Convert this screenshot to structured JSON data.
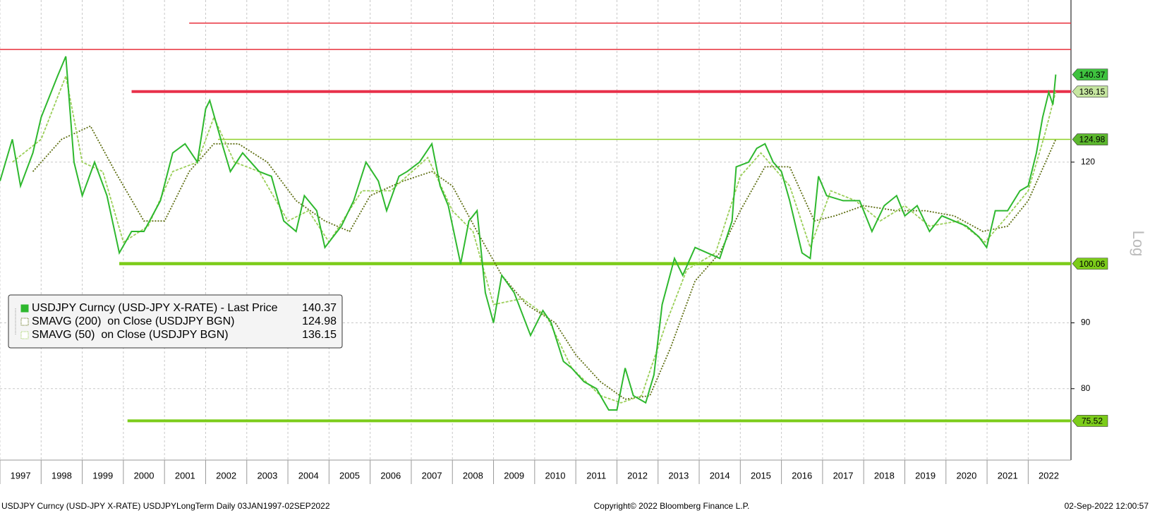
{
  "chart_data": {
    "type": "line",
    "log_scale": true,
    "grid": true,
    "axis_label": "Log",
    "footer_left": "USDJPY Curncy (USD-JPY X-RATE) USDJPYLongTerm  Daily 03JAN1997-02SEP2022",
    "footer_center": "Copyright© 2022 Bloomberg Finance L.P.",
    "footer_right": "02-Sep-2022 12:00:57",
    "xlim": [
      1997,
      2023.04
    ],
    "x_labels": [
      "1997",
      "1998",
      "1999",
      "2000",
      "2001",
      "2002",
      "2003",
      "2004",
      "2005",
      "2006",
      "2007",
      "2008",
      "2009",
      "2010",
      "2011",
      "2012",
      "2013",
      "2014",
      "2015",
      "2016",
      "2017",
      "2018",
      "2019",
      "2020",
      "2021",
      "2022"
    ],
    "ylim": [
      70.4,
      160.4
    ],
    "yticks": [
      80,
      90,
      120
    ],
    "series": [
      {
        "name": "USDJPY Curncy (USD-JPY X-RATE) - Last Price",
        "last": 140.37,
        "color": "#2eb82e",
        "style": "solid",
        "x": [
          1997.0,
          1997.3,
          1997.5,
          1997.8,
          1998.0,
          1998.4,
          1998.6,
          1998.8,
          1999.0,
          1999.3,
          1999.6,
          1999.9,
          2000.2,
          2000.5,
          2000.9,
          2001.2,
          2001.5,
          2001.8,
          2002.0,
          2002.1,
          2002.4,
          2002.6,
          2002.9,
          2003.3,
          2003.6,
          2003.9,
          2004.2,
          2004.4,
          2004.7,
          2004.9,
          2005.3,
          2005.6,
          2005.9,
          2006.2,
          2006.4,
          2006.7,
          2006.9,
          2007.2,
          2007.5,
          2007.7,
          2007.9,
          2008.2,
          2008.4,
          2008.6,
          2008.8,
          2009.0,
          2009.2,
          2009.5,
          2009.9,
          2010.2,
          2010.4,
          2010.7,
          2010.9,
          2011.2,
          2011.5,
          2011.8,
          2012.0,
          2012.2,
          2012.4,
          2012.7,
          2012.9,
          2013.1,
          2013.4,
          2013.6,
          2013.9,
          2014.2,
          2014.5,
          2014.8,
          2014.9,
          2015.2,
          2015.4,
          2015.6,
          2015.8,
          2016.0,
          2016.2,
          2016.5,
          2016.7,
          2016.9,
          2017.1,
          2017.5,
          2017.9,
          2018.2,
          2018.5,
          2018.8,
          2019.0,
          2019.3,
          2019.6,
          2019.9,
          2020.2,
          2020.5,
          2020.8,
          2020.99,
          2021.2,
          2021.5,
          2021.8,
          2022.0,
          2022.2,
          2022.35,
          2022.5,
          2022.6,
          2022.67
        ],
        "values": [
          116,
          125,
          115,
          122,
          130,
          140,
          145,
          120,
          113,
          120,
          113,
          102,
          106,
          106,
          112,
          122,
          124,
          120,
          132,
          134,
          124,
          118,
          122,
          118,
          117,
          108,
          106,
          113,
          110,
          103,
          107,
          112,
          120,
          116,
          110,
          117,
          118,
          120,
          124,
          115,
          111,
          100,
          108,
          110,
          95,
          90,
          98,
          95,
          88,
          92,
          90,
          84,
          83,
          81,
          80,
          77,
          77,
          83,
          79,
          78,
          82,
          93,
          101,
          98,
          103,
          102,
          101,
          108,
          119,
          120,
          123,
          124,
          120,
          118,
          112,
          102,
          101,
          117,
          113,
          112,
          112,
          106,
          111,
          113,
          109,
          111,
          106,
          109,
          108,
          107,
          105,
          103,
          110,
          110,
          114,
          115,
          122,
          130,
          136,
          133,
          140.37
        ]
      },
      {
        "name": "SMAVG (200)  on Close (USDJPY BGN)",
        "last": 124.98,
        "color": "#5e6e12",
        "style": "dotted",
        "x": [
          1997.8,
          1998.5,
          1999.2,
          1999.8,
          2000.5,
          2001.0,
          2001.6,
          2002.2,
          2002.8,
          2003.5,
          2004.2,
          2004.9,
          2005.5,
          2006.0,
          2006.8,
          2007.5,
          2008.0,
          2008.6,
          2009.2,
          2009.8,
          2010.5,
          2011.0,
          2011.6,
          2012.2,
          2012.8,
          2013.3,
          2013.9,
          2014.5,
          2015.0,
          2015.6,
          2016.2,
          2016.8,
          2017.3,
          2018.0,
          2018.8,
          2019.5,
          2020.2,
          2020.9,
          2021.5,
          2022.0,
          2022.67
        ],
        "values": [
          118,
          125,
          128,
          118,
          108,
          108,
          118,
          124,
          124,
          120,
          112,
          108,
          106,
          113,
          116,
          118,
          115,
          106,
          98,
          93,
          90,
          85,
          81,
          78.5,
          79,
          86,
          97,
          102,
          110,
          119,
          119,
          108,
          109,
          111,
          110,
          110,
          109,
          106,
          107,
          112,
          124.98
        ]
      },
      {
        "name": "SMAVG (50)  on Close (USDJPY BGN)",
        "last": 136.15,
        "color": "#9ccf5a",
        "style": "dashed",
        "x": [
          1997.3,
          1998.0,
          1998.6,
          1999.0,
          1999.5,
          2000.0,
          2000.6,
          2001.2,
          2001.8,
          2002.2,
          2002.7,
          2003.3,
          2004.0,
          2004.5,
          2005.0,
          2005.8,
          2006.5,
          2007.4,
          2008.0,
          2008.5,
          2009.0,
          2009.7,
          2010.3,
          2010.9,
          2011.6,
          2012.1,
          2012.6,
          2013.2,
          2013.7,
          2014.4,
          2015.0,
          2015.5,
          2016.2,
          2016.7,
          2017.2,
          2017.8,
          2018.4,
          2019.0,
          2019.6,
          2020.3,
          2020.95,
          2021.5,
          2022.0,
          2022.4,
          2022.67
        ],
        "values": [
          120,
          125,
          140,
          120,
          118,
          104,
          107,
          118,
          120,
          130,
          120,
          118,
          108,
          110,
          104,
          114,
          114,
          121,
          110,
          106,
          93,
          94,
          91,
          83,
          79,
          78,
          79,
          90,
          99,
          102,
          117,
          122,
          115,
          103,
          114,
          112,
          108,
          111,
          107,
          108,
          104,
          109,
          114,
          126,
          136.15
        ]
      }
    ],
    "levels": [
      {
        "value": 153.9,
        "color": "#e8303c",
        "width": 1.5,
        "from": 2001.6
      },
      {
        "value": 146.8,
        "color": "#e8303c",
        "width": 1.5,
        "from": 1997
      },
      {
        "value": 136.15,
        "color": "#e8304a",
        "width": 4,
        "from": 2000.2
      },
      {
        "value": 124.98,
        "color": "#8fd12a",
        "width": 1.5,
        "from": 2002.3
      },
      {
        "value": 100.06,
        "color": "#7ccc1a",
        "width": 4.5,
        "from": 1999.9
      },
      {
        "value": 75.52,
        "color": "#7ccc1a",
        "width": 4,
        "from": 2000.1
      }
    ],
    "right_labels": [
      {
        "value": 140.37,
        "color": "#3fc23f"
      },
      {
        "value": 136.15,
        "color": "#c6e6a0"
      },
      {
        "value": 124.98,
        "color": "#5cb82e"
      },
      {
        "value": 100.06,
        "color": "#7ccc1a"
      },
      {
        "value": 75.52,
        "color": "#7ccc1a"
      }
    ]
  }
}
